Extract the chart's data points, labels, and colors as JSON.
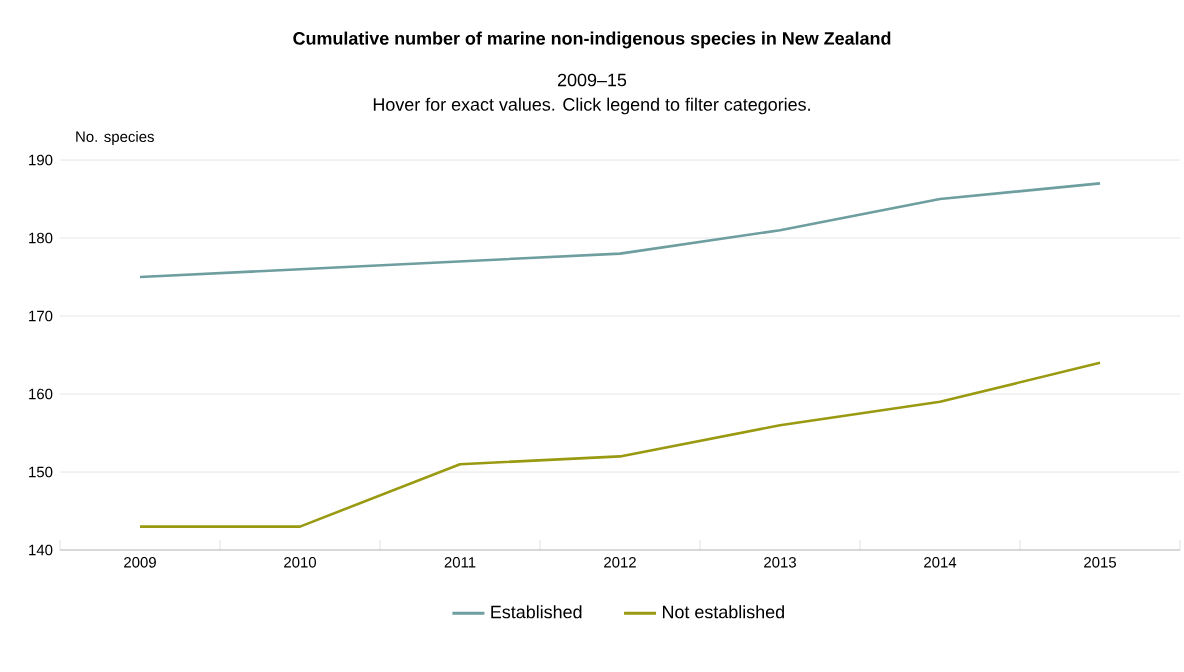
{
  "chart_data": {
    "type": "line",
    "title": "Cumulative number of marine non-indigenous species in New Zealand",
    "subtitle": "2009–15",
    "annotations": [
      "Hover for exact values. Click legend to filter categories."
    ],
    "ylabel": "No. species",
    "categories": [
      "2009",
      "2010",
      "2011",
      "2012",
      "2013",
      "2014",
      "2015"
    ],
    "series": [
      {
        "name": "Established",
        "color": "#6e9e9f",
        "values": [
          175,
          176,
          177,
          178,
          181,
          185,
          187
        ]
      },
      {
        "name": "Not established",
        "color": "#9a9a12",
        "values": [
          143,
          143,
          151,
          152,
          156,
          159,
          164
        ]
      }
    ],
    "ylim": [
      140,
      190
    ],
    "yticks": [
      140,
      150,
      160,
      170,
      180,
      190
    ],
    "grid": "y",
    "legend": "bottom",
    "marker": "none",
    "line_style": "solid"
  }
}
